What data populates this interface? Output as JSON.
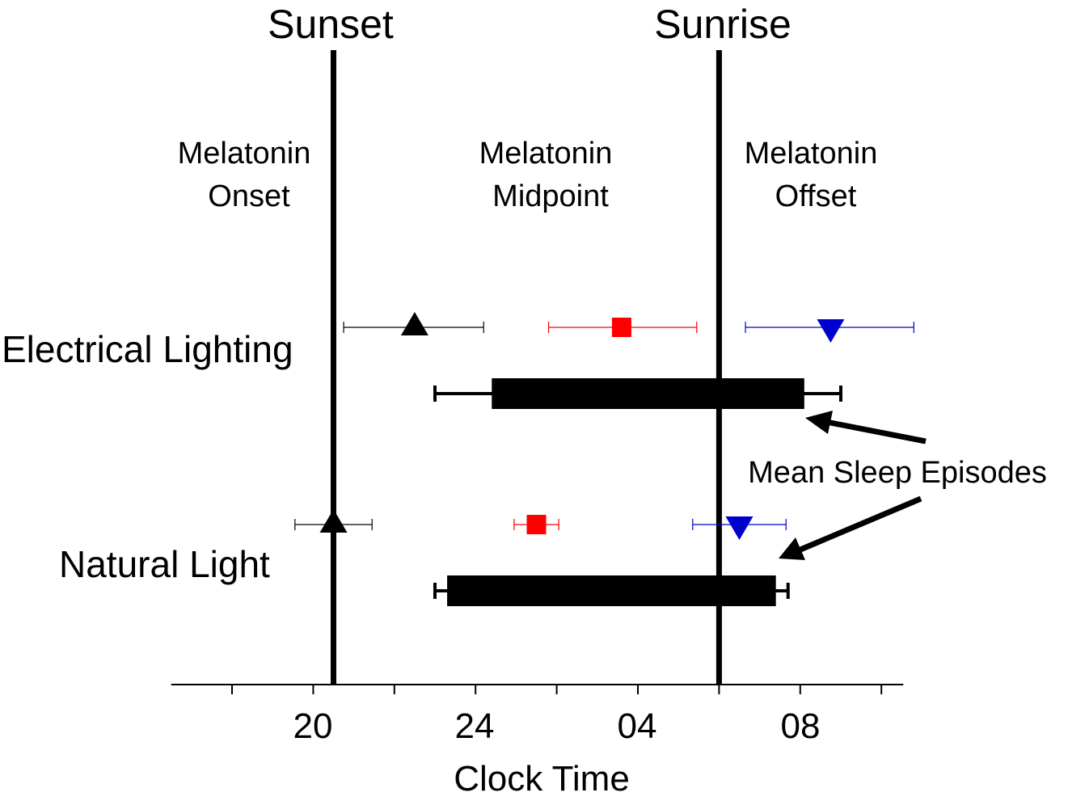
{
  "chart_data": {
    "type": "scatter",
    "xlabel": "Clock Time",
    "x_unit": "hours (clock time; values above 24 are the following morning)",
    "xlim": [
      16.5,
      34.5
    ],
    "x_ticks": [
      18,
      20,
      22,
      24,
      26,
      28,
      30,
      32,
      34
    ],
    "x_tick_labels": [
      {
        "value": 20,
        "label": "20"
      },
      {
        "value": 24,
        "label": "24"
      },
      {
        "value": 28,
        "label": "04"
      },
      {
        "value": 32,
        "label": "08"
      }
    ],
    "reference_lines": [
      {
        "name": "sunset",
        "label": "Sunset",
        "x": 20.5
      },
      {
        "name": "sunrise",
        "label": "Sunrise",
        "x": 30.0
      }
    ],
    "column_labels": [
      {
        "name": "onset",
        "line1": "Melatonin",
        "line2": "Onset",
        "color": "#000000"
      },
      {
        "name": "midpoint",
        "line1": "Melatonin",
        "line2": "Midpoint",
        "color": "#ff0000"
      },
      {
        "name": "offset",
        "line1": "Melatonin",
        "line2": "Offset",
        "color": "#0000cc"
      }
    ],
    "groups": [
      {
        "name": "electrical",
        "label": "Electrical Lighting",
        "markers": [
          {
            "series": "Melatonin Onset",
            "shape": "triangle-up",
            "color": "#000000",
            "x": 22.5,
            "err_low": 20.75,
            "err_high": 24.2
          },
          {
            "series": "Melatonin Midpoint",
            "shape": "square",
            "color": "#ff0000",
            "x": 27.6,
            "err_low": 25.8,
            "err_high": 29.45
          },
          {
            "series": "Melatonin Offset",
            "shape": "triangle-down",
            "color": "#0000cc",
            "x": 32.75,
            "err_low": 30.65,
            "err_high": 34.8
          }
        ],
        "sleep": {
          "start": 24.4,
          "end": 32.1,
          "err_low": 23.0,
          "err_high": 33.0
        }
      },
      {
        "name": "natural",
        "label": "Natural Light",
        "markers": [
          {
            "series": "Melatonin Onset",
            "shape": "triangle-up",
            "color": "#000000",
            "x": 20.5,
            "err_low": 19.55,
            "err_high": 21.45
          },
          {
            "series": "Melatonin Midpoint",
            "shape": "square",
            "color": "#ff0000",
            "x": 25.5,
            "err_low": 24.95,
            "err_high": 26.05
          },
          {
            "series": "Melatonin Offset",
            "shape": "triangle-down",
            "color": "#0000cc",
            "x": 30.5,
            "err_low": 29.35,
            "err_high": 31.65
          }
        ],
        "sleep": {
          "start": 23.3,
          "end": 31.4,
          "err_low": 23.0,
          "err_high": 31.7
        }
      }
    ],
    "annotation": {
      "label": "Mean Sleep Episodes"
    }
  }
}
